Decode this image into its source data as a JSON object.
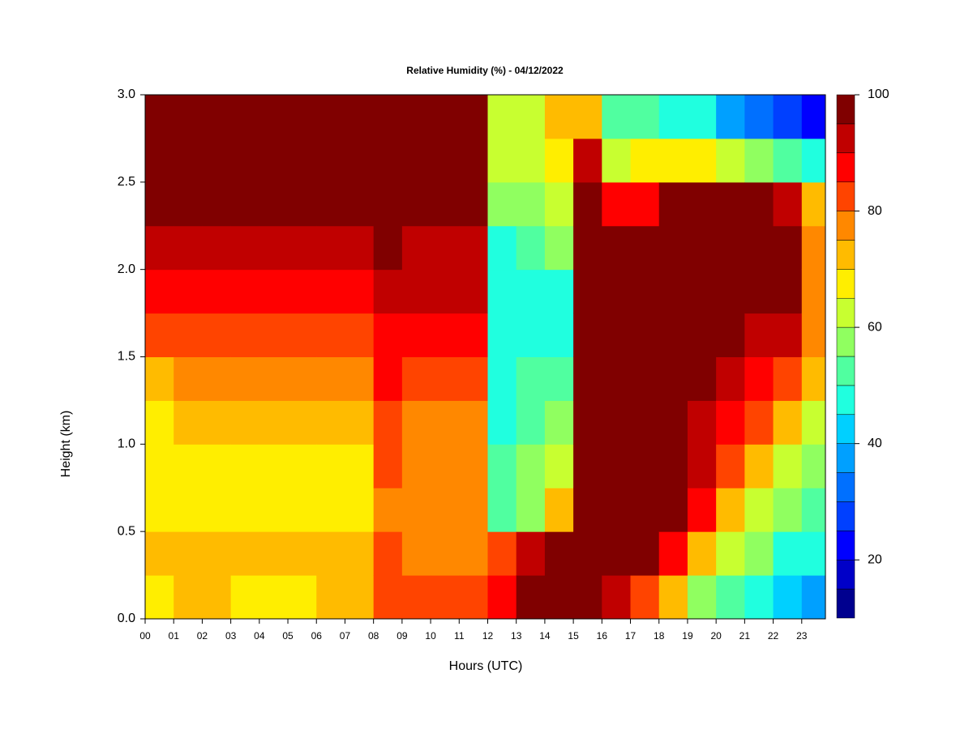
{
  "chart_data": {
    "type": "heatmap",
    "title": "Relative Humidity (%) - 04/12/2022",
    "x_label": "Hours (UTC)",
    "y_label": "Height (km)",
    "x_bins": [
      0,
      1,
      2,
      3,
      4,
      5,
      6,
      7,
      8,
      9,
      10,
      11,
      12,
      13,
      14,
      15,
      16,
      17,
      18,
      19,
      20,
      21,
      22,
      23,
      23.83
    ],
    "y_bins": [
      0,
      0.25,
      0.5,
      0.75,
      1,
      1.25,
      1.5,
      1.75,
      2,
      2.25,
      2.5,
      2.75,
      3
    ],
    "xlim": [
      0,
      23.83
    ],
    "ylim": [
      0,
      3
    ],
    "xticks": [
      {
        "value": 0,
        "label": "00"
      },
      {
        "value": 1,
        "label": "01"
      },
      {
        "value": 2,
        "label": "02"
      },
      {
        "value": 3,
        "label": "03"
      },
      {
        "value": 4,
        "label": "04"
      },
      {
        "value": 5,
        "label": "05"
      },
      {
        "value": 6,
        "label": "06"
      },
      {
        "value": 7,
        "label": "07"
      },
      {
        "value": 8,
        "label": "08"
      },
      {
        "value": 9,
        "label": "09"
      },
      10,
      11,
      12,
      13,
      14,
      15,
      16,
      17,
      18,
      19,
      20,
      21,
      22,
      23
    ],
    "yticks": [
      {
        "value": 0,
        "label": "0.0"
      },
      0.5,
      {
        "value": 1,
        "label": "1.0"
      },
      1.5,
      {
        "value": 2,
        "label": "2.0"
      },
      2.5,
      {
        "value": 3,
        "label": "3.0"
      }
    ],
    "values": [
      [
        68,
        70,
        66,
        66,
        68,
        74,
        80,
        88,
        92,
        97,
        98,
        98
      ],
      [
        70,
        70,
        67,
        67,
        70,
        76,
        82,
        88,
        92,
        97,
        98,
        98
      ],
      [
        70,
        70,
        67,
        67,
        70,
        76,
        82,
        88,
        92,
        97,
        98,
        98
      ],
      [
        68,
        70,
        67,
        67,
        70,
        76,
        82,
        88,
        92,
        97,
        98,
        98
      ],
      [
        66,
        70,
        67,
        67,
        70,
        76,
        82,
        88,
        92,
        97,
        98,
        98
      ],
      [
        68,
        70,
        67,
        67,
        70,
        76,
        82,
        88,
        92,
        97,
        98,
        98
      ],
      [
        70,
        70,
        67,
        67,
        70,
        76,
        82,
        88,
        92,
        97,
        98,
        98
      ],
      [
        70,
        70,
        67,
        67,
        70,
        76,
        82,
        88,
        92,
        97,
        98,
        98
      ],
      [
        80,
        80,
        78,
        80,
        82,
        85,
        88,
        92,
        95,
        98,
        98,
        98
      ],
      [
        82,
        78,
        75,
        75,
        76,
        80,
        86,
        90,
        93,
        98,
        98,
        98
      ],
      [
        82,
        78,
        75,
        75,
        76,
        80,
        86,
        90,
        93,
        98,
        98,
        98
      ],
      [
        82,
        78,
        75,
        75,
        76,
        80,
        86,
        90,
        93,
        98,
        98,
        98
      ],
      [
        85,
        80,
        50,
        50,
        48,
        48,
        45,
        45,
        48,
        55,
        60,
        62
      ],
      [
        95,
        90,
        55,
        55,
        52,
        50,
        48,
        48,
        50,
        55,
        60,
        62
      ],
      [
        98,
        95,
        70,
        60,
        55,
        50,
        48,
        48,
        55,
        60,
        65,
        70
      ],
      [
        98,
        98,
        98,
        98,
        98,
        98,
        98,
        98,
        98,
        97,
        90,
        70
      ],
      [
        90,
        98,
        98,
        98,
        98,
        98,
        98,
        98,
        97,
        85,
        62,
        50
      ],
      [
        80,
        96,
        98,
        98,
        98,
        98,
        98,
        98,
        98,
        88,
        65,
        50
      ],
      [
        70,
        88,
        96,
        98,
        98,
        98,
        98,
        98,
        98,
        95,
        65,
        48
      ],
      [
        58,
        72,
        88,
        92,
        93,
        96,
        98,
        98,
        98,
        97,
        68,
        45
      ],
      [
        50,
        62,
        70,
        80,
        88,
        92,
        96,
        98,
        98,
        97,
        60,
        38
      ],
      [
        45,
        55,
        62,
        70,
        80,
        88,
        93,
        96,
        96,
        96,
        55,
        32
      ],
      [
        40,
        48,
        55,
        63,
        72,
        80,
        90,
        95,
        95,
        93,
        50,
        28
      ],
      [
        35,
        45,
        52,
        58,
        64,
        70,
        76,
        78,
        78,
        72,
        45,
        22
      ]
    ],
    "levels": [
      10,
      15,
      20,
      25,
      30,
      35,
      40,
      45,
      50,
      55,
      60,
      65,
      70,
      75,
      80,
      85,
      90,
      95,
      100
    ],
    "colors": [
      "#00008f",
      "#0000c8",
      "#0000ff",
      "#0040ff",
      "#0070ff",
      "#00a0ff",
      "#00d0ff",
      "#20ffdf",
      "#50ffa0",
      "#90ff60",
      "#c8ff30",
      "#ffee00",
      "#ffbb00",
      "#ff8800",
      "#ff4400",
      "#ff0000",
      "#c00000",
      "#800000"
    ],
    "colorbar_ticks": [
      20,
      40,
      60,
      80,
      100
    ]
  }
}
